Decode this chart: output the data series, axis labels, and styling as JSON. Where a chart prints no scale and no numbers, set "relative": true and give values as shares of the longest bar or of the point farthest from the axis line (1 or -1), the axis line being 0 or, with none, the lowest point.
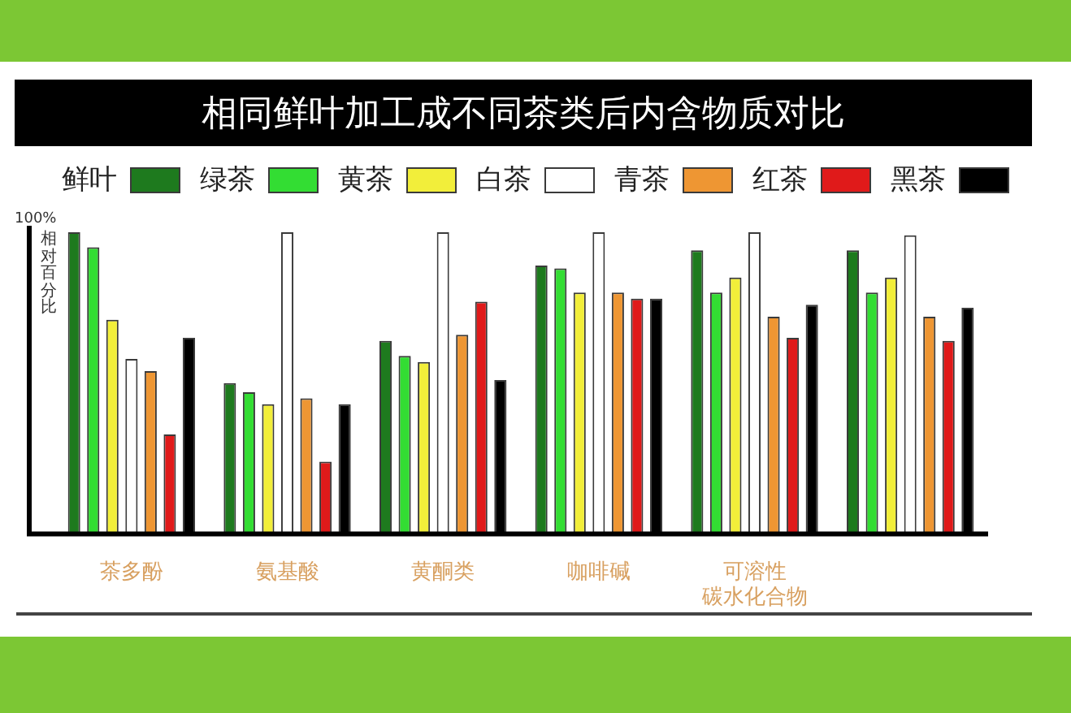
{
  "chart_data": {
    "type": "bar",
    "title": "相同鲜叶加工成不同茶类后内含物质对比",
    "ylabel": "相对百分比",
    "annotations": [
      "100%"
    ],
    "categories": [
      "茶多酚",
      "氨基酸",
      "黄酮类",
      "咖啡碱",
      "可溶性碳水化合物",
      null
    ],
    "series": [
      {
        "name": "鲜叶",
        "color": "#1e7a1e",
        "values": [
          1.0,
          0.5,
          0.64,
          0.89,
          0.94,
          0.94
        ]
      },
      {
        "name": "绿茶",
        "color": "#33dd33",
        "values": [
          0.95,
          0.47,
          0.59,
          0.88,
          0.8,
          0.8
        ]
      },
      {
        "name": "黄茶",
        "color": "#f2ee3a",
        "values": [
          0.71,
          0.43,
          0.57,
          0.8,
          0.85,
          0.85
        ]
      },
      {
        "name": "白茶",
        "color": "#ffffff",
        "values": [
          0.58,
          1.0,
          1.0,
          1.0,
          1.0,
          0.99
        ]
      },
      {
        "name": "青茶",
        "color": "#ee9633",
        "values": [
          0.54,
          0.45,
          0.66,
          0.8,
          0.72,
          0.72
        ]
      },
      {
        "name": "红茶",
        "color": "#e01a1a",
        "values": [
          0.33,
          0.24,
          0.77,
          0.78,
          0.65,
          0.64
        ]
      },
      {
        "name": "黑茶",
        "color": "#000000",
        "values": [
          0.65,
          0.43,
          0.51,
          0.78,
          0.76,
          0.75
        ]
      }
    ],
    "relative": true,
    "legend": "top"
  }
}
